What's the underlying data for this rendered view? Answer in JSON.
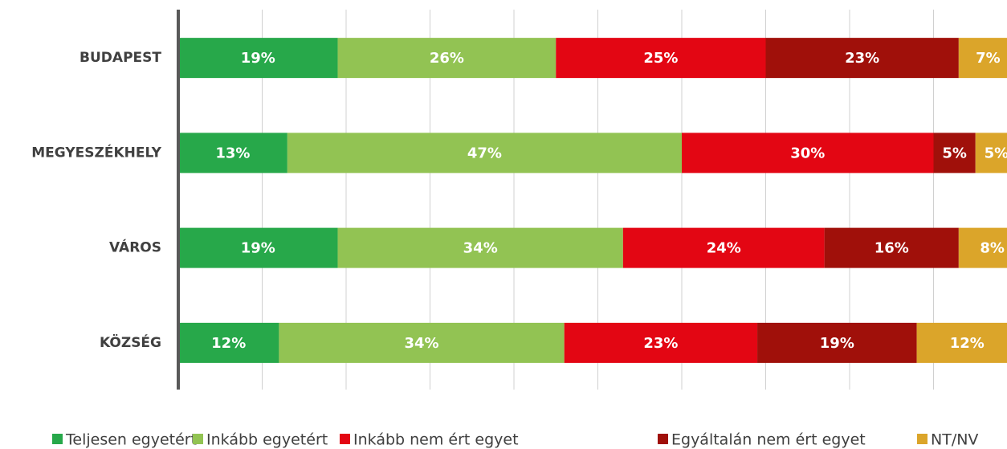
{
  "chart_data": {
    "type": "stacked-bar-horizontal",
    "categories": [
      "BUDAPEST",
      "MEGYESZÉKHELY",
      "VÁROS",
      "KÖZSÉG"
    ],
    "series": [
      {
        "name": "Teljesen egyetért",
        "color": "#27a84a",
        "values": [
          19,
          13,
          19,
          12
        ],
        "value_labels": [
          "19%",
          "13%",
          "19%",
          "12%"
        ]
      },
      {
        "name": "Inkább egyetért",
        "color": "#92c353",
        "values": [
          26,
          47,
          34,
          34
        ],
        "value_labels": [
          "26%",
          "47%",
          "34%",
          "34%"
        ]
      },
      {
        "name": "Inkább nem ért egyet",
        "color": "#e30613",
        "values": [
          25,
          30,
          24,
          23
        ],
        "value_labels": [
          "25%",
          "30%",
          "24%",
          "23%"
        ]
      },
      {
        "name": "Egyáltalán nem ért egyet",
        "color": "#a0100a",
        "values": [
          23,
          5,
          16,
          19
        ],
        "value_labels": [
          "23%",
          "5%",
          "16%",
          "19%"
        ]
      },
      {
        "name": "NT/NV",
        "color": "#dba52a",
        "values": [
          7,
          5,
          8,
          12
        ],
        "value_labels": [
          "7%",
          "5%",
          "8%",
          "12%"
        ]
      }
    ],
    "xlim": [
      0,
      100
    ],
    "xticks": [
      0,
      10,
      20,
      30,
      40,
      50,
      60,
      70,
      80,
      90,
      100
    ],
    "grid": true,
    "legend": "bottom"
  }
}
